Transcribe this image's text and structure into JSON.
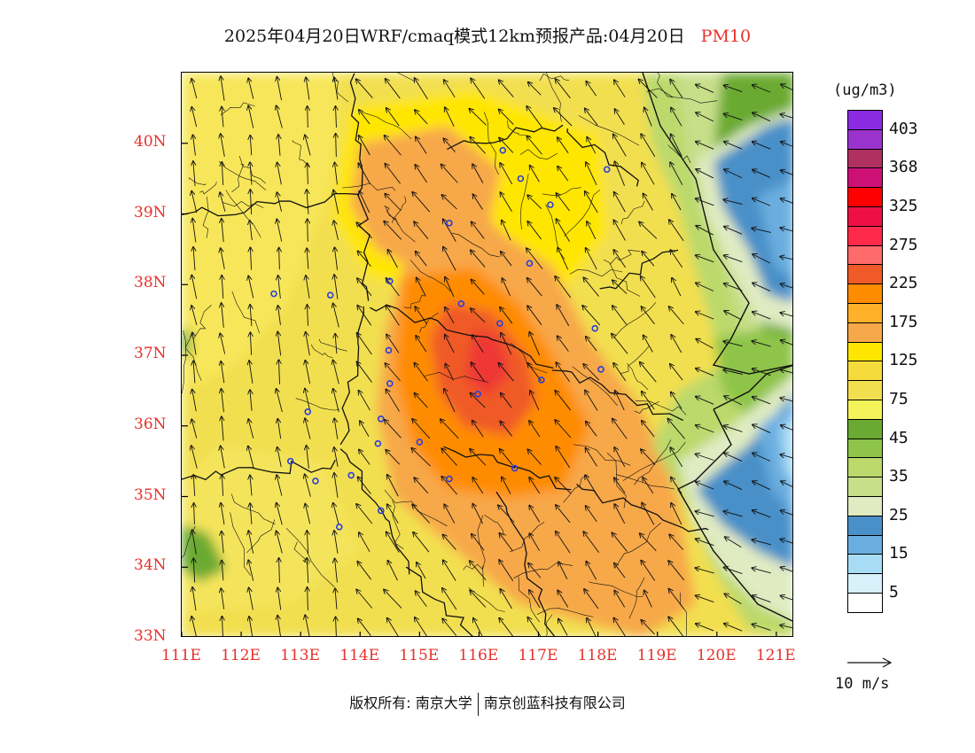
{
  "title": {
    "main": "2025年04月20日WRF/cmaq模式12km预报产品:04月20日",
    "species": "PM10"
  },
  "map": {
    "lat_labels": [
      "33N",
      "34N",
      "35N",
      "36N",
      "37N",
      "38N",
      "39N",
      "40N"
    ],
    "lon_labels": [
      "111E",
      "112E",
      "113E",
      "114E",
      "115E",
      "116E",
      "117E",
      "118E",
      "119E",
      "120E",
      "121E"
    ],
    "lat_range": [
      33,
      41
    ],
    "lon_range": [
      111,
      121.3
    ],
    "prevailing_wind": "southeast",
    "stations": [
      [
        116.4,
        39.9
      ],
      [
        116.7,
        39.5
      ],
      [
        118.15,
        39.63
      ],
      [
        117.2,
        39.13
      ],
      [
        115.5,
        38.87
      ],
      [
        116.85,
        38.3
      ],
      [
        114.5,
        38.05
      ],
      [
        112.55,
        37.87
      ],
      [
        113.5,
        37.85
      ],
      [
        115.7,
        37.73
      ],
      [
        116.35,
        37.45
      ],
      [
        117.95,
        37.38
      ],
      [
        114.48,
        37.07
      ],
      [
        114.5,
        36.6
      ],
      [
        115.98,
        36.45
      ],
      [
        117.05,
        36.65
      ],
      [
        118.05,
        36.8
      ],
      [
        113.12,
        36.2
      ],
      [
        114.35,
        36.1
      ],
      [
        114.3,
        35.75
      ],
      [
        115.0,
        35.77
      ],
      [
        115.5,
        35.25
      ],
      [
        116.6,
        35.4
      ],
      [
        112.83,
        35.5
      ],
      [
        113.25,
        35.22
      ],
      [
        113.85,
        35.3
      ],
      [
        114.35,
        34.8
      ],
      [
        113.65,
        34.57
      ]
    ]
  },
  "legend": {
    "unit": "(ug/m3)",
    "bins": [
      {
        "color": "#8a2be2"
      },
      {
        "color": "#9a32cd"
      },
      {
        "color": "#b03060"
      },
      {
        "color": "#cd1076"
      },
      {
        "color": "#ff0000"
      },
      {
        "color": "#ee1045"
      },
      {
        "color": "#ff2a4a"
      },
      {
        "color": "#ff6a6a"
      },
      {
        "color": "#f05a28"
      },
      {
        "color": "#ff8c00"
      },
      {
        "color": "#ffb12a"
      },
      {
        "color": "#f7a84a"
      },
      {
        "color": "#ffe600"
      },
      {
        "color": "#f5dc3c"
      },
      {
        "color": "#f2df50"
      },
      {
        "color": "#f4f45a"
      },
      {
        "color": "#6aaa32"
      },
      {
        "color": "#8ec44a"
      },
      {
        "color": "#bcd96c"
      },
      {
        "color": "#c8df8a"
      },
      {
        "color": "#e0ebc2"
      },
      {
        "color": "#4a90c8"
      },
      {
        "color": "#6aaee0"
      },
      {
        "color": "#a8dcf4"
      },
      {
        "color": "#d8f0fa"
      },
      {
        "color": "#ffffff"
      }
    ],
    "labels": [
      "403",
      "368",
      "325",
      "275",
      "225",
      "175",
      "125",
      "75",
      "45",
      "35",
      "25",
      "15",
      "5"
    ],
    "wind_ref": "10 m/s"
  },
  "footer": {
    "left": "版权所有: 南京大学",
    "right": "南京创蓝科技有限公司"
  }
}
